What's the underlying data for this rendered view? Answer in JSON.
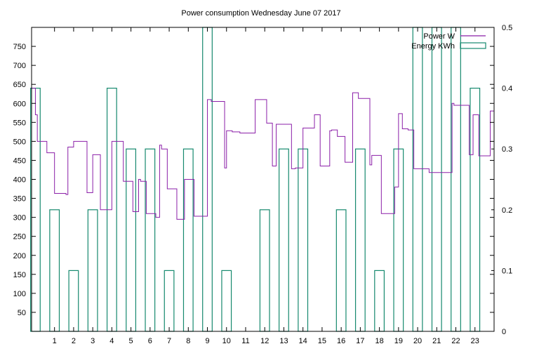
{
  "chart_data": {
    "type": "line",
    "title": "Power consumption Wednesday June 07 2017",
    "xlabel": "",
    "ylabel": "",
    "y2label": "",
    "xlim": [
      -0.2,
      24.0
    ],
    "ylim": [
      0,
      800
    ],
    "y2lim": [
      0,
      0.5
    ],
    "x_ticks": [
      1,
      2,
      3,
      4,
      5,
      6,
      7,
      8,
      9,
      10,
      11,
      12,
      13,
      14,
      15,
      16,
      17,
      18,
      19,
      20,
      21,
      22,
      23
    ],
    "y_ticks": [
      50,
      100,
      150,
      200,
      250,
      300,
      350,
      400,
      450,
      500,
      550,
      600,
      650,
      700,
      750
    ],
    "y2_ticks": [
      0,
      0.1,
      0.2,
      0.3,
      0.4,
      0.5
    ],
    "grid": false,
    "legend": {
      "position": "top-right",
      "entries": [
        "Power W",
        "Energy KWh"
      ]
    },
    "colors": {
      "power": "#8b1fa8",
      "energy": "#16896e"
    },
    "series": [
      {
        "name": "Power W",
        "axis": "y1",
        "style": "step",
        "x": [
          -0.2,
          0.0,
          0.1,
          0.3,
          0.6,
          1.0,
          1.6,
          1.7,
          2.0,
          2.6,
          2.7,
          3.0,
          3.4,
          3.5,
          3.6,
          4.0,
          4.4,
          4.6,
          5.0,
          5.1,
          5.4,
          5.5,
          5.8,
          6.0,
          6.3,
          6.5,
          6.6,
          6.9,
          7.0,
          7.4,
          7.8,
          8.0,
          8.3,
          8.5,
          9.0,
          9.2,
          9.6,
          9.9,
          10.0,
          10.3,
          10.5,
          10.7,
          11.0,
          11.5,
          11.8,
          12.1,
          12.4,
          12.6,
          13.0,
          13.4,
          13.6,
          13.9,
          14.0,
          14.3,
          14.6,
          14.9,
          15.0,
          15.4,
          15.5,
          15.8,
          16.0,
          16.2,
          16.6,
          16.9,
          17.0,
          17.5,
          17.6,
          17.8,
          18.1,
          18.6,
          18.8,
          19.0,
          19.2,
          19.5,
          19.8,
          20.0,
          20.6,
          21.0,
          21.8,
          21.9,
          22.0,
          22.7,
          22.9,
          23.0,
          23.2,
          23.8
        ],
        "values": [
          640,
          570,
          500,
          500,
          470,
          363,
          360,
          485,
          500,
          500,
          365,
          465,
          320,
          320,
          320,
          500,
          500,
          395,
          395,
          315,
          400,
          395,
          310,
          310,
          300,
          490,
          480,
          375,
          375,
          295,
          400,
          400,
          303,
          303,
          610,
          605,
          605,
          430,
          528,
          525,
          525,
          522,
          522,
          610,
          610,
          548,
          435,
          545,
          545,
          428,
          430,
          430,
          535,
          535,
          570,
          435,
          435,
          528,
          530,
          513,
          513,
          445,
          628,
          613,
          613,
          438,
          463,
          463,
          310,
          310,
          380,
          573,
          533,
          530,
          428,
          428,
          418,
          418,
          600,
          595,
          595,
          465,
          570,
          570,
          462,
          580
        ]
      },
      {
        "name": "Energy KWh",
        "axis": "y2",
        "style": "boxes",
        "hours": [
          0,
          1,
          2,
          3,
          4,
          5,
          6,
          7,
          8,
          9,
          10,
          11,
          12,
          13,
          14,
          15,
          16,
          17,
          18,
          19,
          20,
          21,
          22,
          23
        ],
        "values": [
          0.4,
          0.2,
          0.1,
          0.2,
          0.4,
          0.3,
          0.3,
          0.1,
          0.3,
          0.5,
          0.1,
          0.0,
          0.2,
          0.3,
          0.3,
          0.0,
          0.2,
          0.3,
          0.1,
          0.3,
          0.5,
          0.5,
          0.5,
          0.4
        ]
      }
    ]
  }
}
